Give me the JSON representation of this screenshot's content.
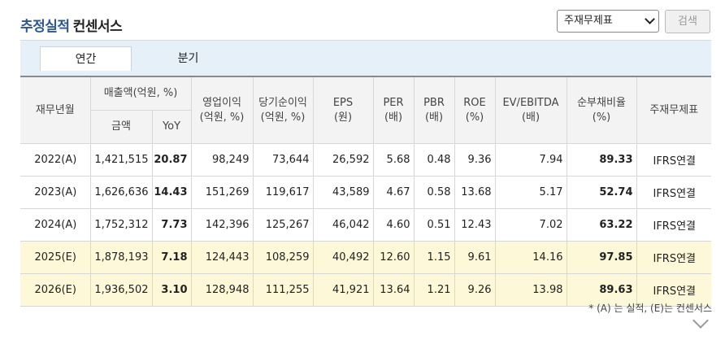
{
  "header": {
    "title_part1": "추정실적",
    "title_part2": "컨센서스",
    "select_value": "주재무제표",
    "search_label": "검색"
  },
  "tabs": [
    {
      "label": "연간",
      "active": true
    },
    {
      "label": "분기",
      "active": false
    }
  ],
  "table": {
    "headers": {
      "period": "재무년월",
      "sales_group": "매출액(억원, %)",
      "sales_amount": "금액",
      "sales_yoy": "YoY",
      "op_income": "영업이익",
      "op_income_unit": "(억원, %)",
      "net_income": "당기순이익",
      "net_income_unit": "(억원, %)",
      "eps": "EPS",
      "eps_unit": "(원)",
      "per": "PER",
      "per_unit": "(배)",
      "pbr": "PBR",
      "pbr_unit": "(배)",
      "roe": "ROE",
      "roe_unit": "(%)",
      "ev_ebitda": "EV/EBITDA",
      "ev_ebitda_unit": "(배)",
      "debt_ratio": "순부채비율",
      "debt_ratio_unit": "(%)",
      "statement": "주재무제표"
    },
    "rows": [
      {
        "period": "2022(A)",
        "sales": "1,421,515",
        "yoy": "20.87",
        "op": "98,249",
        "net": "73,644",
        "eps": "26,592",
        "per": "5.68",
        "pbr": "0.48",
        "roe": "9.36",
        "ev": "7.94",
        "debt": "89.33",
        "stmt": "IFRS연결"
      },
      {
        "period": "2023(A)",
        "sales": "1,626,636",
        "yoy": "14.43",
        "op": "151,269",
        "net": "119,617",
        "eps": "43,589",
        "per": "4.67",
        "pbr": "0.58",
        "roe": "13.68",
        "ev": "5.17",
        "debt": "52.74",
        "stmt": "IFRS연결"
      },
      {
        "period": "2024(A)",
        "sales": "1,752,312",
        "yoy": "7.73",
        "op": "142,396",
        "net": "125,267",
        "eps": "46,042",
        "per": "4.60",
        "pbr": "0.51",
        "roe": "12.43",
        "ev": "7.02",
        "debt": "63.22",
        "stmt": "IFRS연결"
      },
      {
        "period": "2025(E)",
        "sales": "1,878,193",
        "yoy": "7.18",
        "op": "124,443",
        "net": "108,259",
        "eps": "40,492",
        "per": "12.60",
        "pbr": "1.15",
        "roe": "9.61",
        "ev": "14.16",
        "debt": "97.85",
        "stmt": "IFRS연결"
      },
      {
        "period": "2026(E)",
        "sales": "1,936,502",
        "yoy": "3.10",
        "op": "128,948",
        "net": "111,255",
        "eps": "41,921",
        "per": "13.64",
        "pbr": "1.21",
        "roe": "9.26",
        "ev": "13.98",
        "debt": "89.63",
        "stmt": "IFRS연결"
      }
    ]
  },
  "footnote": "* (A) 는 실적, (E)는 컨센서스",
  "colors": {
    "title_blue": "#2b5797",
    "estimate_row_bg": "#fdf8d8",
    "tab_bar_bg": "#e6f0f8"
  }
}
